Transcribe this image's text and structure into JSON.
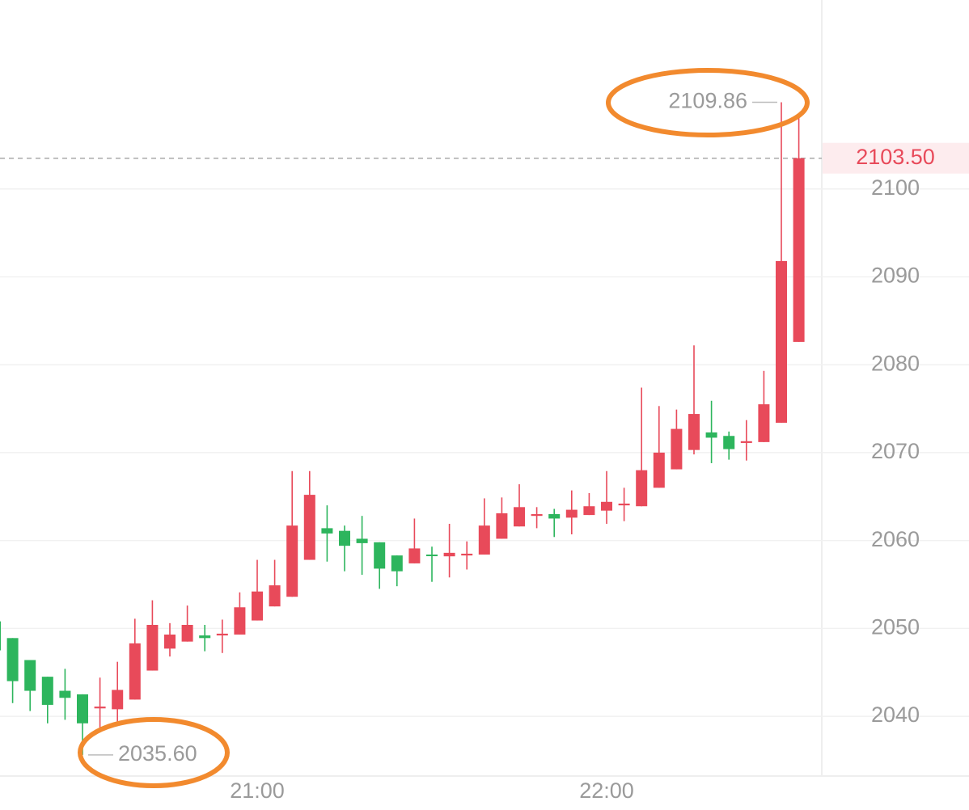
{
  "chart_data": {
    "type": "candlestick",
    "categories": [
      null,
      null,
      null,
      null,
      null,
      null,
      null,
      null,
      null,
      null,
      null,
      null,
      null,
      null,
      null,
      "21:00",
      null,
      null,
      null,
      null,
      null,
      null,
      null,
      null,
      null,
      null,
      null,
      null,
      null,
      null,
      null,
      null,
      null,
      null,
      null,
      "22:00",
      null,
      null,
      null,
      null,
      null,
      null,
      null,
      null,
      null,
      null,
      null
    ],
    "open": [
      2050.8,
      2048.9,
      2046.4,
      2044.5,
      2042.9,
      2042.5,
      2040.9,
      2040.8,
      2041.9,
      2045.2,
      2047.7,
      2048.5,
      2049.2,
      2049.2,
      2049.3,
      2050.9,
      2052.5,
      2053.6,
      2057.8,
      2061.4,
      2061.1,
      2060.2,
      2059.8,
      2058.3,
      2057.4,
      2058.4,
      2058.2,
      2058.3,
      2058.4,
      2060.2,
      2061.6,
      2062.8,
      2063.0,
      2062.6,
      2062.9,
      2063.4,
      2064.0,
      2063.9,
      2066.0,
      2068.1,
      2070.3,
      2072.3,
      2071.9,
      2071.1,
      2071.2,
      2073.4,
      2082.6
    ],
    "high": [
      2050.8,
      2048.9,
      2046.4,
      2044.5,
      2045.4,
      2042.5,
      2044.4,
      2046.2,
      2051.1,
      2053.2,
      2050.6,
      2052.6,
      2050.4,
      2051.0,
      2054.1,
      2057.8,
      2057.8,
      2067.9,
      2067.9,
      2064.0,
      2061.7,
      2062.8,
      2059.8,
      2058.3,
      2062.5,
      2059.3,
      2061.9,
      2059.9,
      2064.8,
      2064.9,
      2066.4,
      2063.8,
      2063.6,
      2065.7,
      2065.4,
      2067.9,
      2066.0,
      2077.4,
      2075.3,
      2074.9,
      2082.2,
      2075.9,
      2072.4,
      2073.7,
      2079.3,
      2109.86,
      2108.4
    ],
    "low": [
      2046.0,
      2041.5,
      2040.6,
      2039.2,
      2039.6,
      2035.6,
      2038.7,
      2039.4,
      2041.9,
      2045.2,
      2046.8,
      2048.5,
      2047.4,
      2047.2,
      2049.3,
      2050.9,
      2052.5,
      2053.6,
      2057.8,
      2057.6,
      2056.5,
      2056.1,
      2054.5,
      2054.8,
      2057.4,
      2055.3,
      2055.8,
      2056.7,
      2058.4,
      2060.2,
      2061.6,
      2061.4,
      2060.4,
      2060.7,
      2062.9,
      2061.9,
      2062.2,
      2063.9,
      2066.0,
      2068.1,
      2069.8,
      2068.8,
      2069.2,
      2069.1,
      2071.2,
      2073.4,
      2082.6
    ],
    "close": [
      2047.5,
      2044.0,
      2042.9,
      2041.3,
      2042.1,
      2039.2,
      2041.1,
      2043.0,
      2048.3,
      2050.4,
      2049.3,
      2050.4,
      2048.9,
      2049.4,
      2052.4,
      2054.2,
      2054.9,
      2061.7,
      2065.2,
      2060.8,
      2059.4,
      2059.7,
      2056.8,
      2056.5,
      2059.1,
      2058.3,
      2058.6,
      2058.5,
      2061.7,
      2063.1,
      2063.8,
      2063.0,
      2062.5,
      2063.5,
      2063.9,
      2064.4,
      2064.2,
      2068.0,
      2070.0,
      2072.7,
      2074.4,
      2071.7,
      2070.4,
      2071.3,
      2075.5,
      2091.8,
      2103.5
    ],
    "up_color": "#e84a5a",
    "down_color": "#2db55d",
    "ylim": [
      2033.2,
      2121.5
    ],
    "yticks": [
      2040,
      2050,
      2060,
      2070,
      2080,
      2090,
      2100
    ],
    "grid": true,
    "last_price": {
      "value": 2103.5,
      "label": "2103.50"
    },
    "annotations": [
      {
        "value": 2109.86,
        "label": "2109.86"
      },
      {
        "value": 2035.6,
        "label": "2035.60"
      }
    ]
  }
}
